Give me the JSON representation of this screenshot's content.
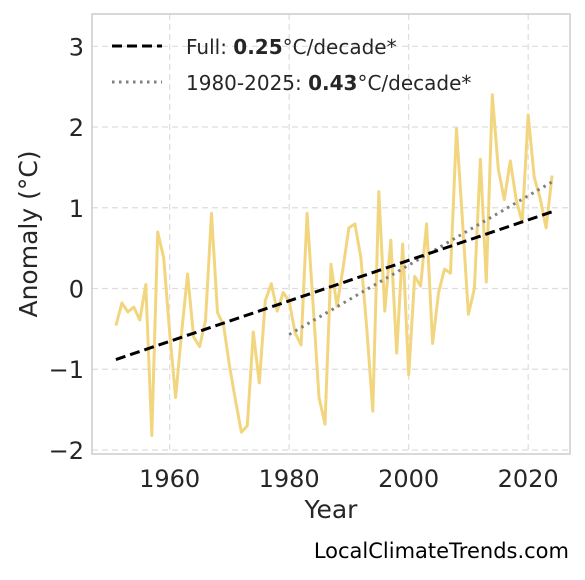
{
  "chart_data": {
    "type": "line",
    "xlabel": "Year",
    "ylabel": "Anomaly (°C)",
    "xlim": [
      1947,
      2027
    ],
    "ylim": [
      -2.05,
      3.4
    ],
    "xticks": [
      1960,
      1980,
      2000,
      2020
    ],
    "yticks": [
      -2,
      -1,
      0,
      1,
      2,
      3
    ],
    "ytick_labels": [
      "−2",
      "−1",
      "0",
      "1",
      "2",
      "3"
    ],
    "grid": true,
    "legend_position": "top-left",
    "colors": {
      "series": "#f2d67f",
      "full_trend": "#000000",
      "recent_trend": "#7f7f7f"
    },
    "series": [
      {
        "x": [
          1951,
          1952,
          1953,
          1954,
          1955,
          1956,
          1957,
          1958,
          1959,
          1960,
          1961,
          1962,
          1963,
          1964,
          1965,
          1966,
          1967,
          1968,
          1969,
          1970,
          1971,
          1972,
          1973,
          1974,
          1975,
          1976,
          1977,
          1978,
          1979,
          1980,
          1981,
          1982,
          1983,
          1984,
          1985,
          1986,
          1987,
          1988,
          1989,
          1990,
          1991,
          1992,
          1993,
          1994,
          1995,
          1996,
          1997,
          1998,
          1999,
          2000,
          2001,
          2002,
          2003,
          2004,
          2005,
          2006,
          2007,
          2008,
          2009,
          2010,
          2011,
          2012,
          2013,
          2014,
          2015,
          2016,
          2017,
          2018,
          2019,
          2020,
          2021,
          2022,
          2023,
          2024
        ],
        "values": [
          -0.46,
          -0.18,
          -0.29,
          -0.23,
          -0.39,
          0.05,
          -1.82,
          0.7,
          0.38,
          -0.55,
          -1.35,
          -0.55,
          0.18,
          -0.6,
          -0.72,
          -0.4,
          0.93,
          -0.3,
          -0.45,
          -0.95,
          -1.38,
          -1.78,
          -1.7,
          -0.54,
          -1.17,
          -0.15,
          0.06,
          -0.28,
          -0.05,
          -0.16,
          -0.55,
          -0.7,
          0.93,
          -0.2,
          -1.35,
          -1.68,
          0.3,
          -0.22,
          0.25,
          0.75,
          0.8,
          0.38,
          -0.5,
          -1.52,
          1.2,
          -0.28,
          0.6,
          -0.8,
          0.55,
          -1.07,
          0.15,
          0.03,
          0.8,
          -0.68,
          -0.05,
          0.24,
          0.19,
          1.98,
          0.85,
          -0.32,
          0.0,
          1.6,
          0.08,
          2.4,
          1.48,
          1.1,
          1.58,
          1.1,
          0.82,
          2.15,
          1.38,
          1.12,
          0.75,
          1.4
        ]
      }
    ],
    "trend_full": {
      "x": [
        1951,
        2024
      ],
      "y": [
        -0.88,
        0.95
      ]
    },
    "trend_recent": {
      "x": [
        1980,
        2024
      ],
      "y": [
        -0.57,
        1.32
      ]
    },
    "legend": [
      {
        "label": "Full: ",
        "value": "0.25",
        "unit": "°C/decade*"
      },
      {
        "label": "1980-2025: ",
        "value": "0.43",
        "unit": "°C/decade*"
      }
    ]
  },
  "footer": "LocalClimateTrends.com"
}
